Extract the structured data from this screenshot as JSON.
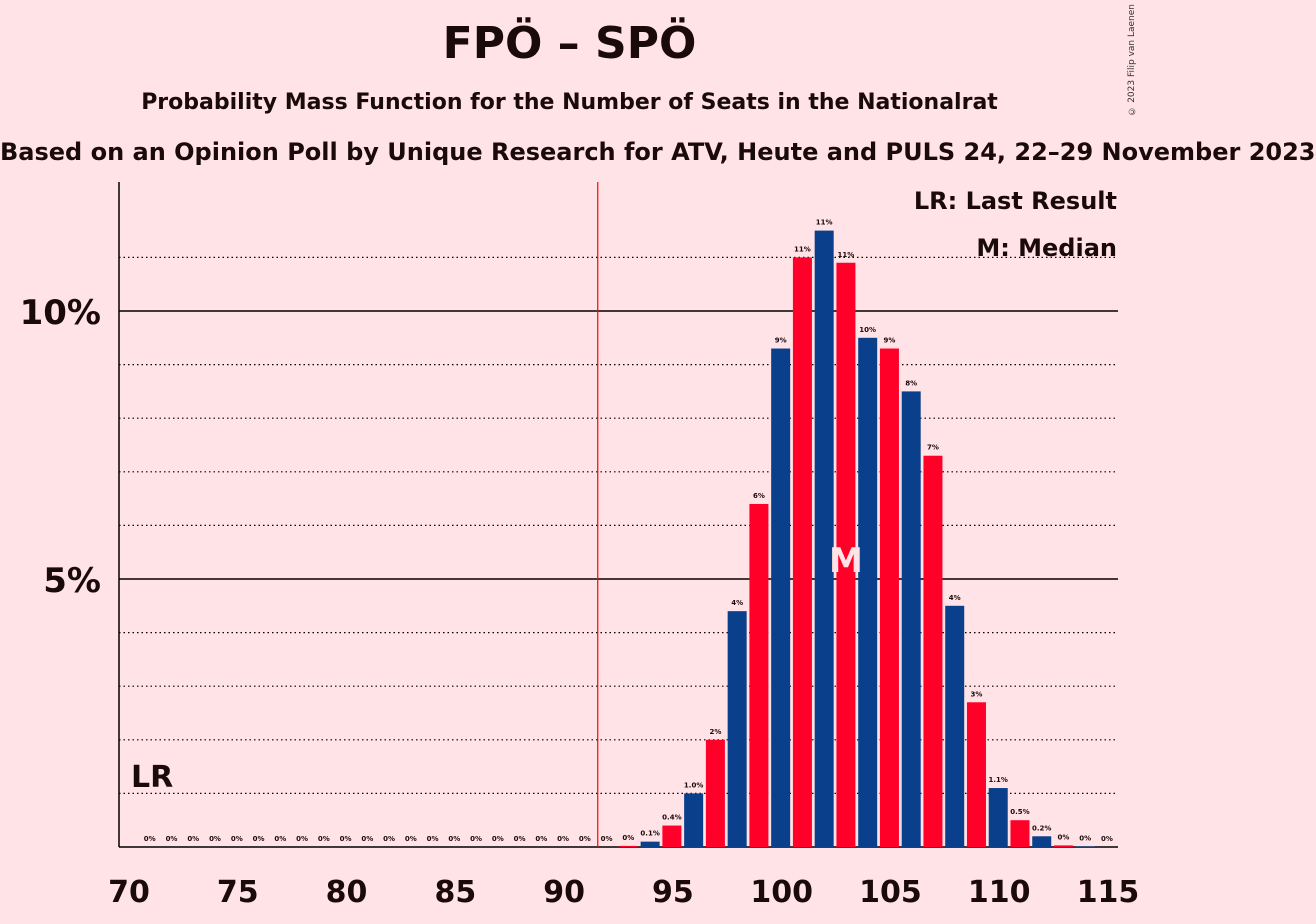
{
  "title": "FPÖ – SPÖ",
  "subtitle": "Probability Mass Function for the Number of Seats in the Nationalrat",
  "source": "Based on an Opinion Poll by Unique Research for ATV, Heute and PULS 24, 22–29 November 2023",
  "copyright": "© 2023 Filip van Laenen",
  "legend": {
    "last_result": "LR: Last Result",
    "median": "M: Median"
  },
  "markers": {
    "last_result_label": "LR",
    "median_label": "M",
    "last_result_seat": 92,
    "median_seat": 103
  },
  "colors": {
    "blue": "#0A3F8C",
    "red": "#FF0028",
    "background": "#FFE3E6",
    "lr_line": "#FF0000"
  },
  "chart_data": {
    "type": "bar",
    "xlabel": "",
    "ylabel": "",
    "x_ticks": [
      "70",
      "75",
      "80",
      "85",
      "90",
      "95",
      "100",
      "105",
      "110",
      "115"
    ],
    "y_ticks": [
      "5%",
      "10%"
    ],
    "ylim": [
      0,
      12.4
    ],
    "xlim": [
      70,
      115
    ],
    "x": [
      71,
      72,
      73,
      74,
      75,
      76,
      77,
      78,
      79,
      80,
      81,
      82,
      83,
      84,
      85,
      86,
      87,
      88,
      89,
      90,
      91,
      92,
      93,
      94,
      95,
      96,
      97,
      98,
      99,
      100,
      101,
      102,
      103,
      104,
      105,
      106,
      107,
      108,
      109,
      110,
      111,
      112,
      113,
      114,
      115
    ],
    "values": [
      0,
      0,
      0,
      0,
      0,
      0,
      0,
      0,
      0,
      0,
      0,
      0,
      0,
      0,
      0,
      0,
      0,
      0,
      0,
      0,
      0,
      0,
      0.02,
      0.1,
      0.4,
      1.0,
      2.0,
      4.4,
      6.4,
      9.3,
      11.0,
      11.5,
      10.9,
      9.5,
      9.3,
      8.5,
      7.3,
      4.5,
      2.7,
      1.1,
      0.5,
      0.2,
      0.03,
      0.01,
      0
    ],
    "labels": [
      "0%",
      "0%",
      "0%",
      "0%",
      "0%",
      "0%",
      "0%",
      "0%",
      "0%",
      "0%",
      "0%",
      "0%",
      "0%",
      "0%",
      "0%",
      "0%",
      "0%",
      "0%",
      "0%",
      "0%",
      "0%",
      "0%",
      "0%",
      "0.1%",
      "0.4%",
      "1.0%",
      "2%",
      "4%",
      "6%",
      "9%",
      "11%",
      "11%",
      "11%",
      "10%",
      "9%",
      "8%",
      "7%",
      "4%",
      "3%",
      "1.1%",
      "0.5%",
      "0.2%",
      "0%",
      "0%",
      "0%"
    ]
  }
}
